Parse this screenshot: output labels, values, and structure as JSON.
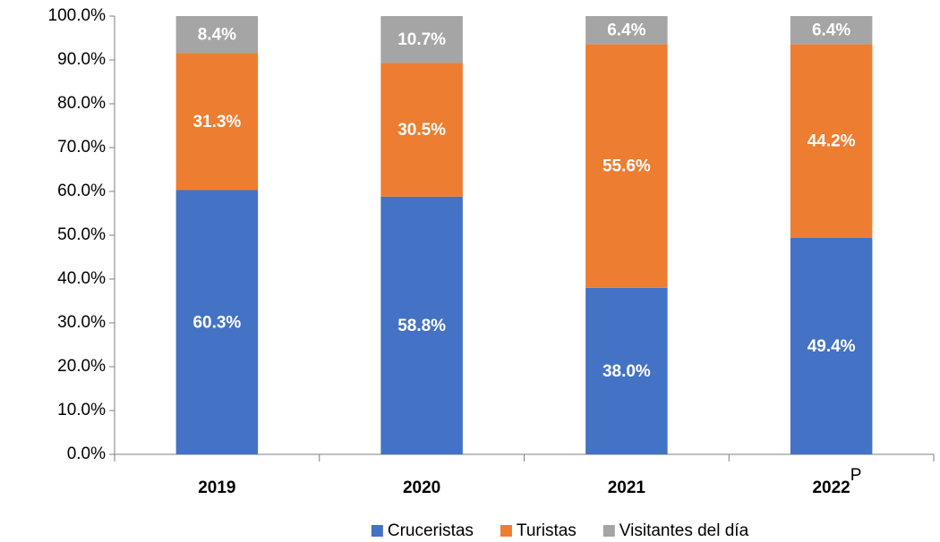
{
  "chart_data": {
    "type": "stacked-bar",
    "categories": [
      "2019",
      "2020",
      "2021",
      "2022"
    ],
    "annotations": [
      "P"
    ],
    "series": [
      {
        "name": "Cruceristas",
        "color": "#4472c4",
        "values": [
          60.3,
          58.8,
          38.0,
          49.4
        ],
        "value_labels": [
          "60.3%",
          "58.8%",
          "38.0%",
          "49.4%"
        ]
      },
      {
        "name": "Turistas",
        "color": "#ed7d31",
        "values": [
          31.3,
          30.5,
          55.6,
          44.2
        ],
        "value_labels": [
          "31.3%",
          "30.5%",
          "55.6%",
          "44.2%"
        ]
      },
      {
        "name": "Visitantes del día",
        "color": "#a5a5a5",
        "values": [
          8.4,
          10.7,
          6.4,
          6.4
        ],
        "value_labels": [
          "8.4%",
          "10.7%",
          "6.4%",
          "6.4%"
        ]
      }
    ],
    "ylim": [
      0,
      100
    ],
    "yticks": [
      {
        "value": 0,
        "label": "0.0%"
      },
      {
        "value": 10,
        "label": "10.0%"
      },
      {
        "value": 20,
        "label": "20.0%"
      },
      {
        "value": 30,
        "label": "30.0%"
      },
      {
        "value": 40,
        "label": "40.0%"
      },
      {
        "value": 50,
        "label": "50.0%"
      },
      {
        "value": 60,
        "label": "60.0%"
      },
      {
        "value": 70,
        "label": "70.0%"
      },
      {
        "value": 80,
        "label": "80.0%"
      },
      {
        "value": 90,
        "label": "90.0%"
      },
      {
        "value": 100,
        "label": "100.0%"
      }
    ],
    "grid": false,
    "legend": "bottom"
  }
}
